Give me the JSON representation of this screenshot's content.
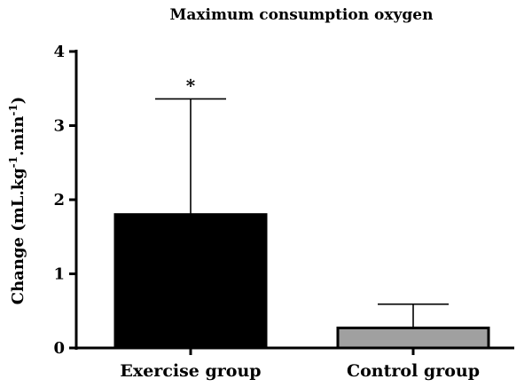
{
  "chart_data": {
    "type": "bar",
    "title": "Maximum consumption oxygen",
    "ylabel": {
      "prefix": "Change (mL.kg",
      "sup1": "-1",
      "middle": ".min",
      "sup2": "-1",
      "suffix": ")"
    },
    "xlabel": "",
    "ylim": [
      0,
      4
    ],
    "yticks": [
      "0",
      "1",
      "2",
      "3",
      "4"
    ],
    "categories": [
      "Exercise group",
      "Control group"
    ],
    "values": [
      1.8,
      0.27
    ],
    "errors": [
      1.56,
      0.32
    ],
    "colors": [
      "#000000",
      "#a0a0a0"
    ],
    "annotations": [
      "*",
      ""
    ],
    "grid": false
  }
}
